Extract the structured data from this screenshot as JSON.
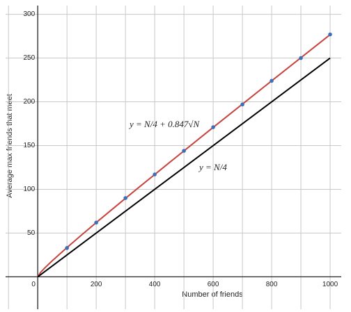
{
  "chart_data": {
    "type": "line",
    "xlabel": "Number of friends",
    "ylabel": "Average max friends that meet",
    "xlim": [
      -110,
      1038
    ],
    "ylim": [
      -37,
      310
    ],
    "xticks": [
      0,
      200,
      400,
      600,
      800,
      1000
    ],
    "yticks": [
      50,
      100,
      150,
      200,
      250,
      300
    ],
    "xgrid": [
      -100,
      100,
      300,
      500,
      700,
      900
    ],
    "grid": true,
    "series": [
      {
        "style": "line",
        "color": "#c74440",
        "x": [
          0,
          10,
          25,
          50,
          100,
          150,
          200,
          250,
          300,
          350,
          400,
          450,
          500,
          550,
          600,
          650,
          700,
          750,
          800,
          850,
          900,
          950,
          1000
        ],
        "values": [
          0,
          5.2,
          10.5,
          18.5,
          33.5,
          47.9,
          62.0,
          75.9,
          89.7,
          103.4,
          116.9,
          130.5,
          143.9,
          157.4,
          170.8,
          184.1,
          197.4,
          210.7,
          224.0,
          237.2,
          250.4,
          263.6,
          276.8
        ]
      },
      {
        "style": "line",
        "color": "#000000",
        "x": [
          0,
          1000
        ],
        "values": [
          0,
          250
        ]
      },
      {
        "style": "points",
        "color": "#3a6fba",
        "x": [
          100,
          200,
          300,
          400,
          500,
          600,
          700,
          800,
          900,
          1000
        ],
        "values": [
          33,
          62,
          90,
          117,
          144,
          171,
          197,
          224,
          250,
          277
        ]
      }
    ],
    "annotations": [
      {
        "text": "y = N/4 + 0.847√N",
        "color": "#c74440"
      },
      {
        "text": "y = N/4",
        "color": "#000000"
      }
    ]
  }
}
